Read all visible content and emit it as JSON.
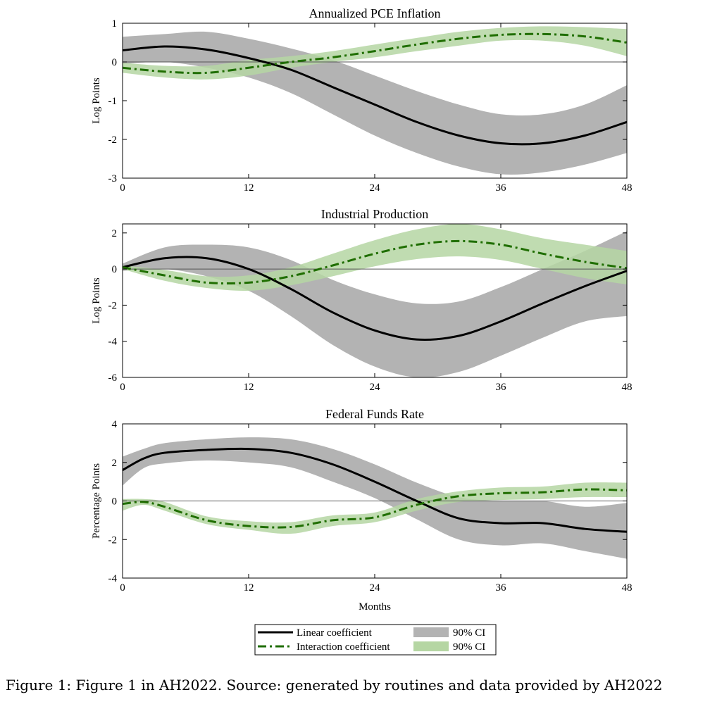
{
  "caption": "Figure 1: Figure 1 in AH2022. Source: generated by routines and data provided by AH2022",
  "legend": {
    "linear_label": "Linear coefficient",
    "linear_ci_label": "90% CI",
    "interaction_label": "Interaction coefficient",
    "interaction_ci_label": "90% CI"
  },
  "colors": {
    "linear_line": "#000000",
    "linear_band": "#b3b3b3",
    "interaction_line": "#1f6e00",
    "interaction_band": "#b5d6a3",
    "zero_line": "#555555"
  },
  "chart_data": [
    {
      "type": "line",
      "title": "Annualized PCE Inflation",
      "ylabel": "Log Points",
      "xlabel": "",
      "xlim": [
        0,
        48
      ],
      "ylim": [
        -3,
        1
      ],
      "xticks": [
        "0",
        "12",
        "24",
        "36",
        "48"
      ],
      "yticks": [
        "1",
        "0",
        "-1",
        "-2",
        "-3"
      ],
      "x": [
        0,
        4,
        8,
        12,
        16,
        20,
        24,
        28,
        32,
        36,
        40,
        44,
        48
      ],
      "series": [
        {
          "name": "Linear coefficient",
          "values": [
            0.3,
            0.4,
            0.32,
            0.1,
            -0.2,
            -0.65,
            -1.1,
            -1.55,
            -1.9,
            -2.1,
            -2.1,
            -1.9,
            -1.55
          ],
          "lower": [
            -0.05,
            0.0,
            -0.15,
            -0.4,
            -0.8,
            -1.35,
            -1.9,
            -2.35,
            -2.7,
            -2.9,
            -2.85,
            -2.65,
            -2.35
          ],
          "upper": [
            0.65,
            0.72,
            0.78,
            0.6,
            0.35,
            0.05,
            -0.35,
            -0.75,
            -1.1,
            -1.35,
            -1.35,
            -1.1,
            -0.6
          ]
        },
        {
          "name": "Interaction coefficient",
          "values": [
            -0.15,
            -0.25,
            -0.28,
            -0.15,
            0.0,
            0.12,
            0.28,
            0.45,
            0.6,
            0.7,
            0.72,
            0.66,
            0.5
          ],
          "lower": [
            -0.28,
            -0.4,
            -0.45,
            -0.35,
            -0.15,
            0.0,
            0.12,
            0.28,
            0.42,
            0.55,
            0.55,
            0.42,
            0.15
          ],
          "upper": [
            -0.02,
            -0.1,
            -0.1,
            0.05,
            0.15,
            0.28,
            0.45,
            0.62,
            0.78,
            0.88,
            0.92,
            0.9,
            0.85
          ]
        }
      ]
    },
    {
      "type": "line",
      "title": "Industrial Production",
      "ylabel": "Log Points",
      "xlabel": "",
      "xlim": [
        0,
        48
      ],
      "ylim": [
        -6,
        2.5
      ],
      "xticks": [
        "0",
        "12",
        "24",
        "36",
        "48"
      ],
      "yticks": [
        "2",
        "0",
        "-2",
        "-4",
        "-6"
      ],
      "x": [
        0,
        4,
        8,
        12,
        16,
        20,
        24,
        28,
        32,
        36,
        40,
        44,
        48
      ],
      "series": [
        {
          "name": "Linear coefficient",
          "values": [
            0.1,
            0.6,
            0.6,
            0.0,
            -1.1,
            -2.4,
            -3.4,
            -3.9,
            -3.7,
            -2.9,
            -1.9,
            -0.95,
            -0.1
          ],
          "lower": [
            -0.1,
            0.0,
            -0.4,
            -1.2,
            -2.6,
            -4.2,
            -5.4,
            -6.0,
            -5.7,
            -4.8,
            -3.8,
            -2.9,
            -2.6
          ],
          "upper": [
            0.3,
            1.2,
            1.35,
            1.2,
            0.5,
            -0.6,
            -1.4,
            -1.9,
            -1.8,
            -1.0,
            0.0,
            1.0,
            2.1
          ]
        },
        {
          "name": "Interaction coefficient",
          "values": [
            0.1,
            -0.35,
            -0.75,
            -0.75,
            -0.4,
            0.2,
            0.85,
            1.35,
            1.55,
            1.35,
            0.85,
            0.4,
            0.05
          ],
          "lower": [
            0.0,
            -0.65,
            -1.05,
            -1.2,
            -0.9,
            -0.4,
            0.15,
            0.55,
            0.7,
            0.5,
            0.0,
            -0.5,
            -0.85
          ],
          "upper": [
            0.2,
            -0.05,
            -0.4,
            -0.35,
            0.1,
            0.85,
            1.6,
            2.2,
            2.5,
            2.2,
            1.7,
            1.35,
            1.0
          ]
        }
      ]
    },
    {
      "type": "line",
      "title": "Federal Funds Rate",
      "ylabel": "Percentage Points",
      "xlabel": "Months",
      "xlim": [
        0,
        48
      ],
      "ylim": [
        -4,
        4
      ],
      "xticks": [
        "0",
        "12",
        "24",
        "36",
        "48"
      ],
      "yticks": [
        "4",
        "2",
        "0",
        "-2",
        "-4"
      ],
      "x": [
        0,
        2,
        4,
        8,
        12,
        16,
        20,
        24,
        28,
        32,
        36,
        40,
        44,
        48
      ],
      "series": [
        {
          "name": "Linear coefficient",
          "values": [
            1.6,
            2.2,
            2.5,
            2.65,
            2.7,
            2.5,
            1.9,
            1.0,
            0.0,
            -0.9,
            -1.15,
            -1.15,
            -1.45,
            -1.6
          ],
          "lower": [
            0.8,
            1.7,
            1.95,
            2.1,
            2.0,
            1.75,
            1.0,
            0.15,
            -0.95,
            -2.0,
            -2.3,
            -2.2,
            -2.6,
            -3.0
          ],
          "upper": [
            2.3,
            2.7,
            3.0,
            3.2,
            3.3,
            3.2,
            2.7,
            1.9,
            0.95,
            0.2,
            0.0,
            0.0,
            -0.3,
            -0.1
          ]
        },
        {
          "name": "Interaction coefficient",
          "values": [
            -0.15,
            -0.05,
            -0.3,
            -1.0,
            -1.3,
            -1.35,
            -1.0,
            -0.85,
            -0.2,
            0.25,
            0.4,
            0.45,
            0.6,
            0.55
          ],
          "lower": [
            -0.5,
            -0.2,
            -0.5,
            -1.2,
            -1.5,
            -1.7,
            -1.3,
            -1.1,
            -0.5,
            -0.05,
            0.05,
            0.1,
            0.2,
            0.2
          ],
          "upper": [
            0.1,
            0.1,
            -0.05,
            -0.8,
            -1.05,
            -1.1,
            -0.75,
            -0.6,
            0.1,
            0.5,
            0.7,
            0.75,
            0.95,
            0.95
          ]
        }
      ]
    }
  ]
}
